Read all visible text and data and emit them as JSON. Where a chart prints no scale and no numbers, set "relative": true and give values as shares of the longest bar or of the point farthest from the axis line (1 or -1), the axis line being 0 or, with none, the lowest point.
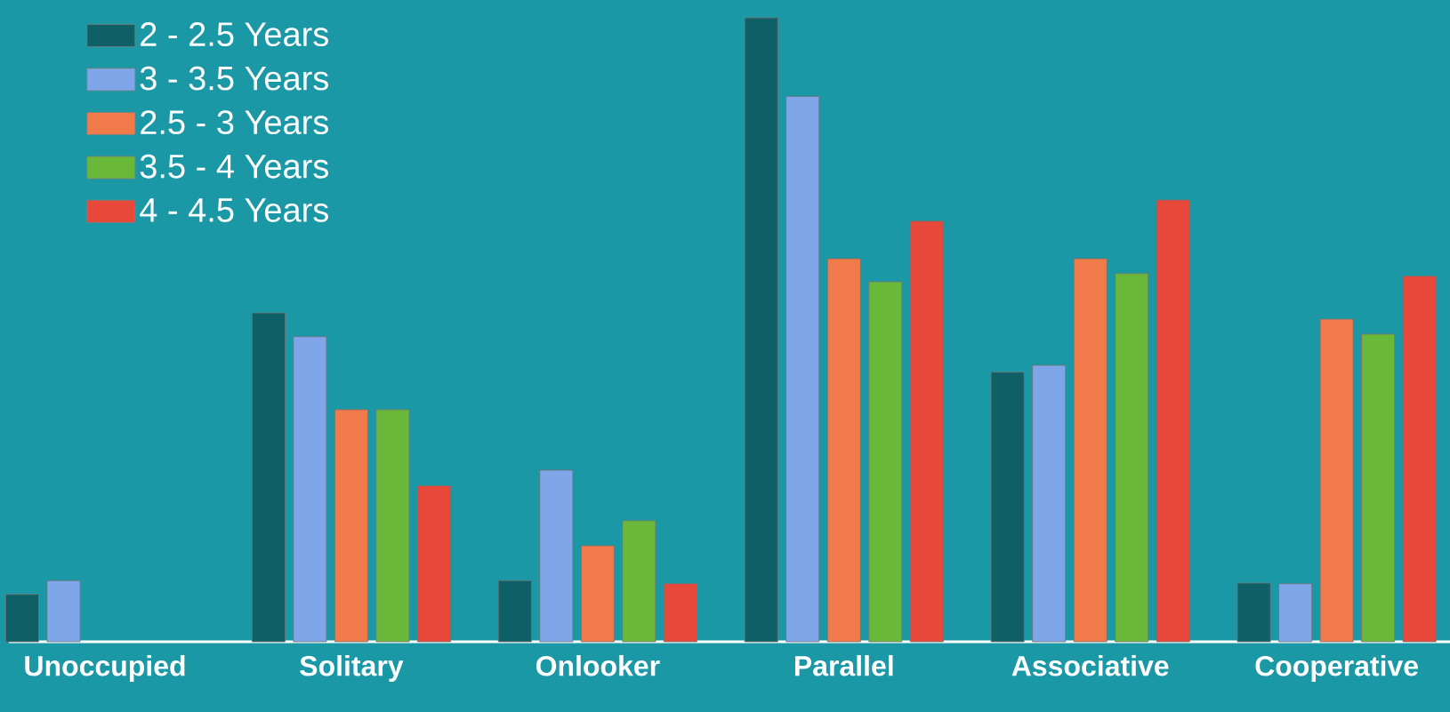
{
  "chart_data": {
    "type": "bar",
    "relative": true,
    "legend": "top left",
    "categories": [
      "Unoccupied",
      "Solitary",
      "Onlooker",
      "Parallel",
      "Associative",
      "Cooperative"
    ],
    "series": [
      {
        "name": "2 - 2.5 Years",
        "color": "#0e5f66",
        "values": [
          0.076,
          0.527,
          0.098,
          1.0,
          0.432,
          0.094
        ]
      },
      {
        "name": "3 - 3.5 Years",
        "color": "#7fa6e8",
        "values": [
          0.098,
          0.489,
          0.275,
          0.874,
          0.443,
          0.093
        ]
      },
      {
        "name": "2.5 - 3 Years",
        "color": "#f07a4a",
        "values": [
          null,
          0.372,
          0.154,
          0.614,
          0.614,
          0.517
        ]
      },
      {
        "name": "3.5 - 4 Years",
        "color": "#6ab83a",
        "values": [
          null,
          0.372,
          0.194,
          0.577,
          0.59,
          0.493
        ]
      },
      {
        "name": "4 - 4.5 Years",
        "color": "#e8483a",
        "values": [
          null,
          0.25,
          0.093,
          0.674,
          0.708,
          0.586
        ]
      }
    ]
  }
}
